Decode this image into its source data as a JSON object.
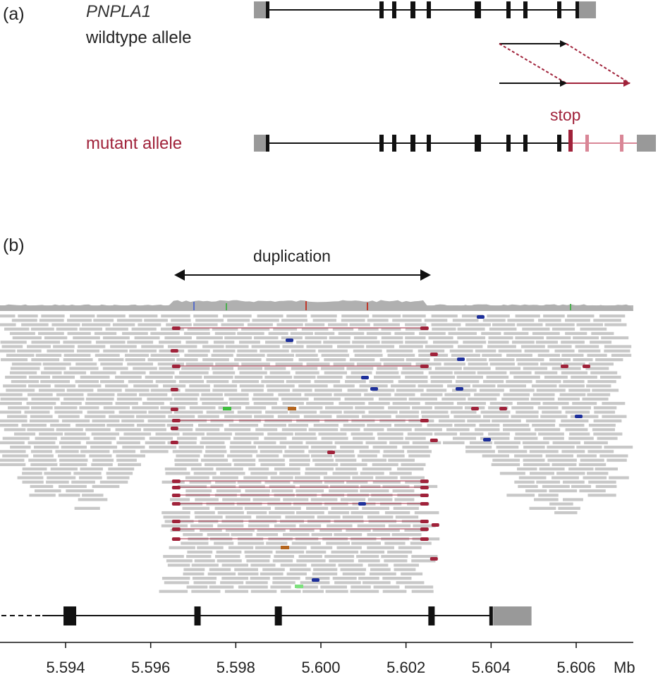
{
  "panel_a": {
    "label": "(a)",
    "gene_name": "PNPLA1",
    "wildtype_label": "wildtype allele",
    "mutant_label": "mutant allele",
    "stop_label": "stop"
  },
  "panel_b": {
    "label": "(b)",
    "duplication_label": "duplication",
    "axis": {
      "ticks": [
        "5.594",
        "5.596",
        "5.598",
        "5.600",
        "5.602",
        "5.604",
        "5.606"
      ],
      "unit": "Mb",
      "range": [
        5.5925,
        5.6073
      ]
    },
    "duplication_range_mb": [
      5.5965,
      5.6025
    ],
    "gene_exons_mb": [
      5.5941,
      5.5971,
      5.599,
      5.6026,
      5.604
    ],
    "gene_utr_mb": [
      5.604,
      5.6049
    ]
  },
  "colors": {
    "mutant": "#a0223a",
    "read_gray": "#c8c8c8",
    "exon": "#111111",
    "utr": "#999999",
    "coverage": "#b0b0b0"
  }
}
